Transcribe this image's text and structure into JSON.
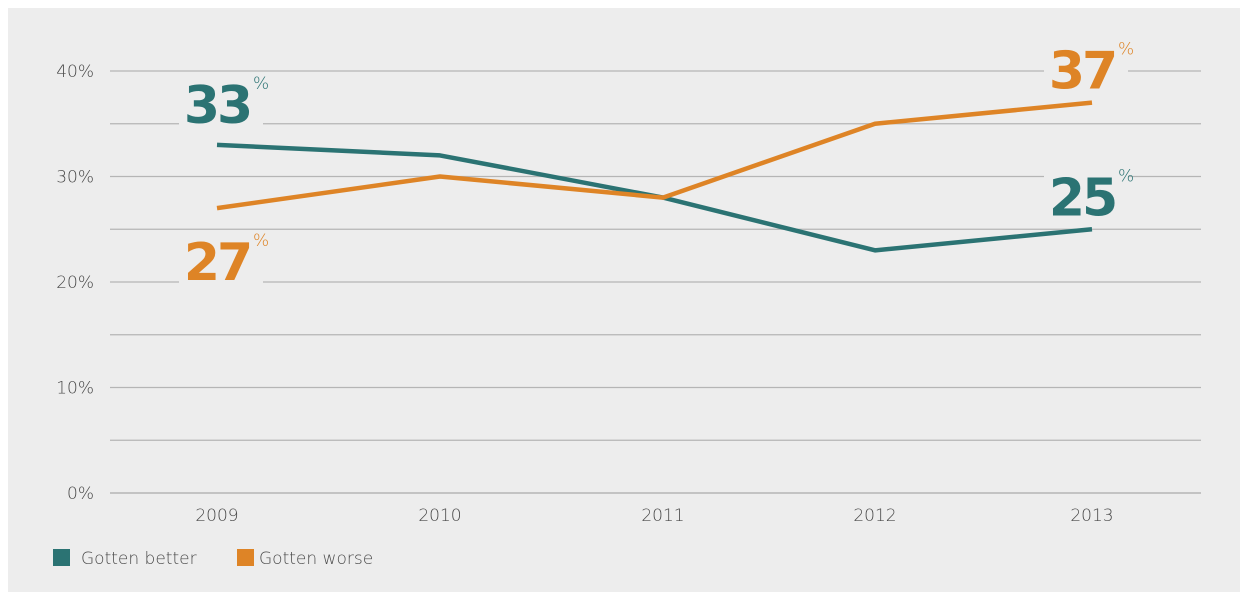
{
  "colors": {
    "better": "#2b7373",
    "worse": "#de8426",
    "grid": "#b5b5b5",
    "background": "#ededed"
  },
  "chart_data": {
    "type": "line",
    "x": [
      "2009",
      "2010",
      "2011",
      "2012",
      "2013"
    ],
    "ylim": [
      0,
      40
    ],
    "y_ticks": [
      "0%",
      "10%",
      "20%",
      "30%",
      "40%"
    ],
    "grid": true,
    "legend_position": "bottom-left",
    "series": [
      {
        "name": "Gotten better",
        "color": "#2b7373",
        "values": [
          33,
          32,
          28,
          23,
          25
        ]
      },
      {
        "name": "Gotten worse",
        "color": "#de8426",
        "values": [
          27,
          30,
          28,
          35,
          37
        ]
      }
    ],
    "annotations": [
      {
        "series": 0,
        "index": 0,
        "value": "33",
        "suffix": "%"
      },
      {
        "series": 1,
        "index": 0,
        "value": "27",
        "suffix": "%"
      },
      {
        "series": 1,
        "index": 4,
        "value": "37",
        "suffix": "%"
      },
      {
        "series": 0,
        "index": 4,
        "value": "25",
        "suffix": "%"
      }
    ]
  }
}
